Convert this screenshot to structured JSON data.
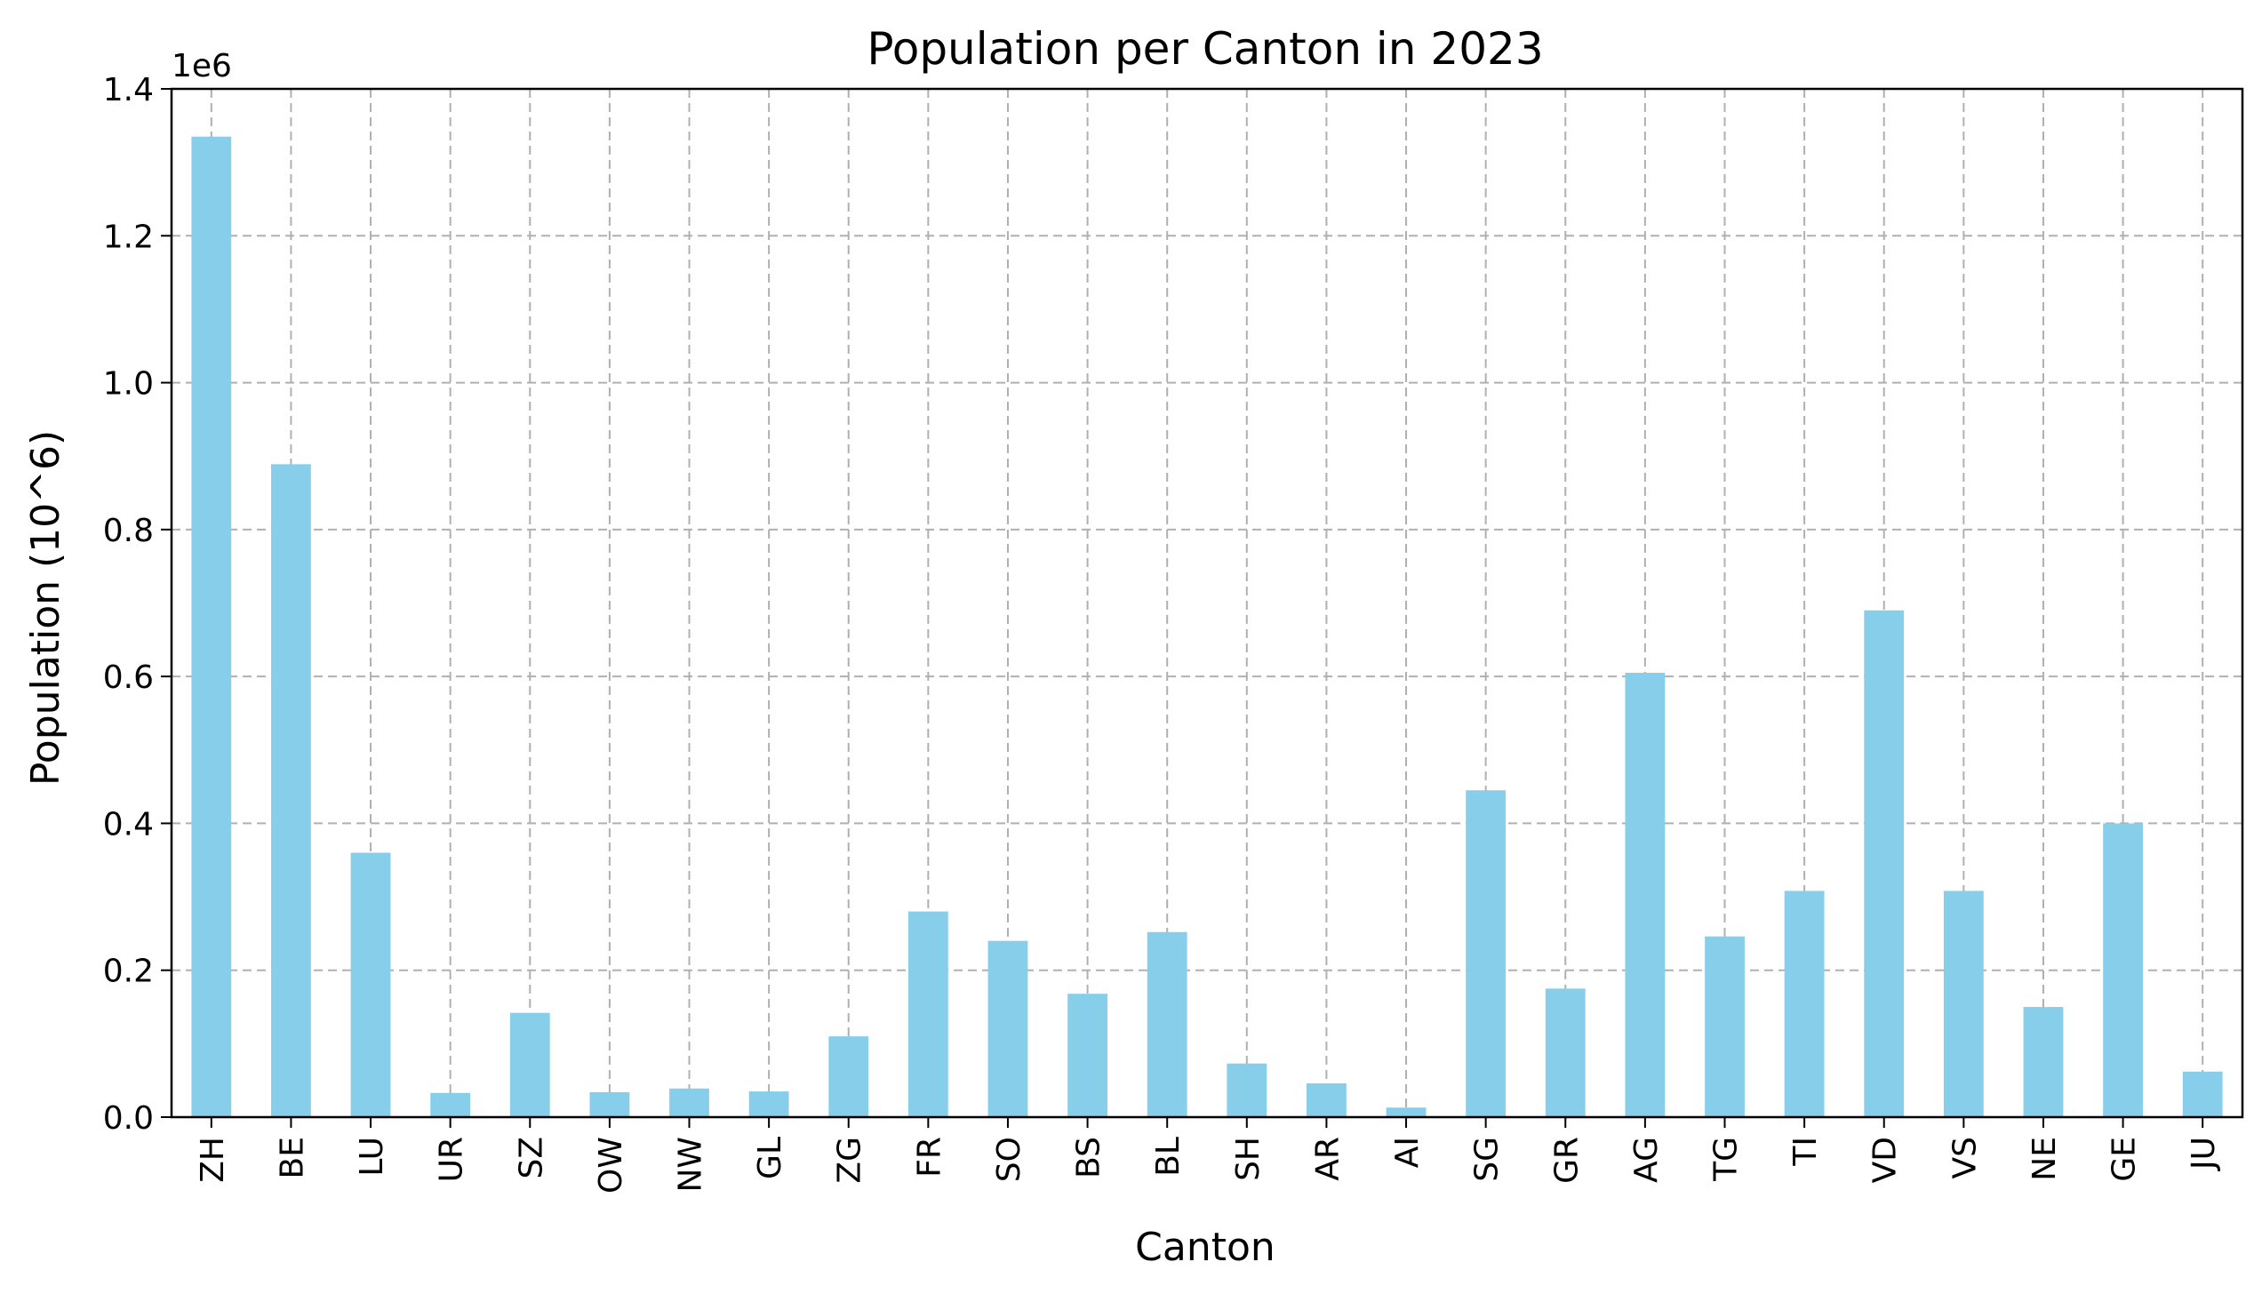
{
  "chart_data": {
    "type": "bar",
    "title": "Population per Canton in 2023",
    "xlabel": "Canton",
    "ylabel": "Population (10^6)",
    "y_offset_label": "1e6",
    "categories": [
      "ZH",
      "BE",
      "LU",
      "UR",
      "SZ",
      "OW",
      "NW",
      "GL",
      "ZG",
      "FR",
      "SO",
      "BS",
      "BL",
      "SH",
      "AR",
      "AI",
      "SG",
      "GR",
      "AG",
      "TG",
      "TI",
      "VD",
      "VS",
      "NE",
      "GE",
      "JU"
    ],
    "values": [
      1.335,
      0.889,
      0.36,
      0.033,
      0.142,
      0.034,
      0.039,
      0.035,
      0.11,
      0.28,
      0.24,
      0.168,
      0.252,
      0.073,
      0.046,
      0.013,
      0.445,
      0.175,
      0.605,
      0.246,
      0.308,
      0.69,
      0.308,
      0.15,
      0.4,
      0.062
    ],
    "ylim": [
      0,
      1.4
    ],
    "yticks": [
      "0.0",
      "0.2",
      "0.4",
      "0.6",
      "0.8",
      "1.0",
      "1.2",
      "1.4"
    ],
    "grid": true,
    "legend": "none",
    "bar_color": "#87CEEB",
    "grid_color": "#b0b0b0"
  }
}
